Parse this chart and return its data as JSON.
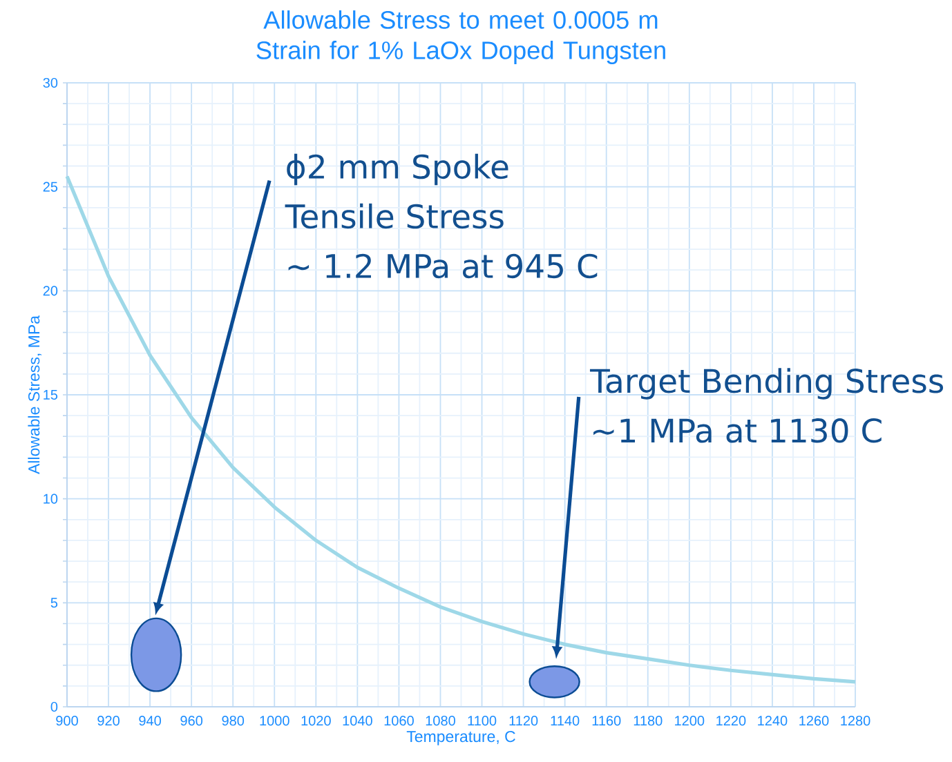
{
  "chart_data": {
    "type": "line",
    "title": "Allowable Stress to meet 0.0005 m Strain for 1% LaOx Doped Tungsten",
    "xlabel": "Temperature, C",
    "ylabel": "Allowable Stress, MPa",
    "x": [
      900,
      920,
      940,
      960,
      980,
      1000,
      1020,
      1040,
      1060,
      1080,
      1100,
      1120,
      1140,
      1160,
      1180,
      1200,
      1220,
      1240,
      1260,
      1280
    ],
    "series": [
      {
        "color": "#9ed8e8",
        "values": [
          25.5,
          20.7,
          16.9,
          13.9,
          11.5,
          9.6,
          8.0,
          6.7,
          5.7,
          4.8,
          4.1,
          3.5,
          3.0,
          2.6,
          2.3,
          2.0,
          1.75,
          1.55,
          1.35,
          1.2
        ]
      }
    ],
    "xlim": [
      900,
      1280
    ],
    "ylim": [
      0,
      30
    ],
    "xticks": [
      900,
      920,
      940,
      960,
      980,
      1000,
      1020,
      1040,
      1060,
      1080,
      1100,
      1120,
      1140,
      1160,
      1180,
      1200,
      1220,
      1240,
      1260,
      1280
    ],
    "yticks": [
      0,
      5,
      10,
      15,
      20,
      25,
      30
    ],
    "grid": true,
    "annotations": [
      "ϕ2 mm Spoke",
      "Tensile Stress",
      "~ 1.2 MPa at 945 C",
      "Target Bending Stress",
      "~1 MPa at 1130 C"
    ]
  }
}
